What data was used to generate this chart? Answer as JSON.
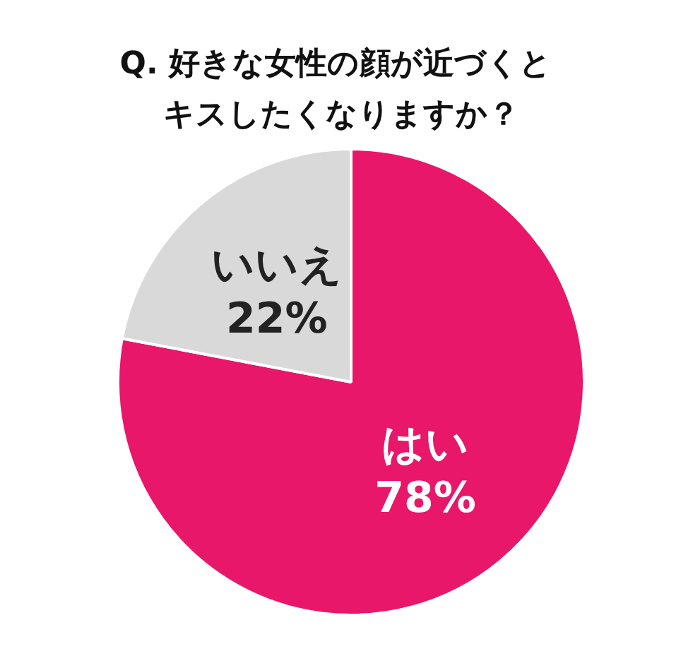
{
  "chart_data": {
    "type": "pie",
    "title": "Q.  好きな女性の顔が近づくと",
    "subtitle": "キスしたくなりますか？",
    "categories": [
      "はい",
      "いいえ"
    ],
    "values": [
      78,
      22
    ],
    "colors": [
      "#e8176a",
      "#d9d9d9"
    ],
    "value_labels": [
      "78%",
      "22%"
    ]
  }
}
